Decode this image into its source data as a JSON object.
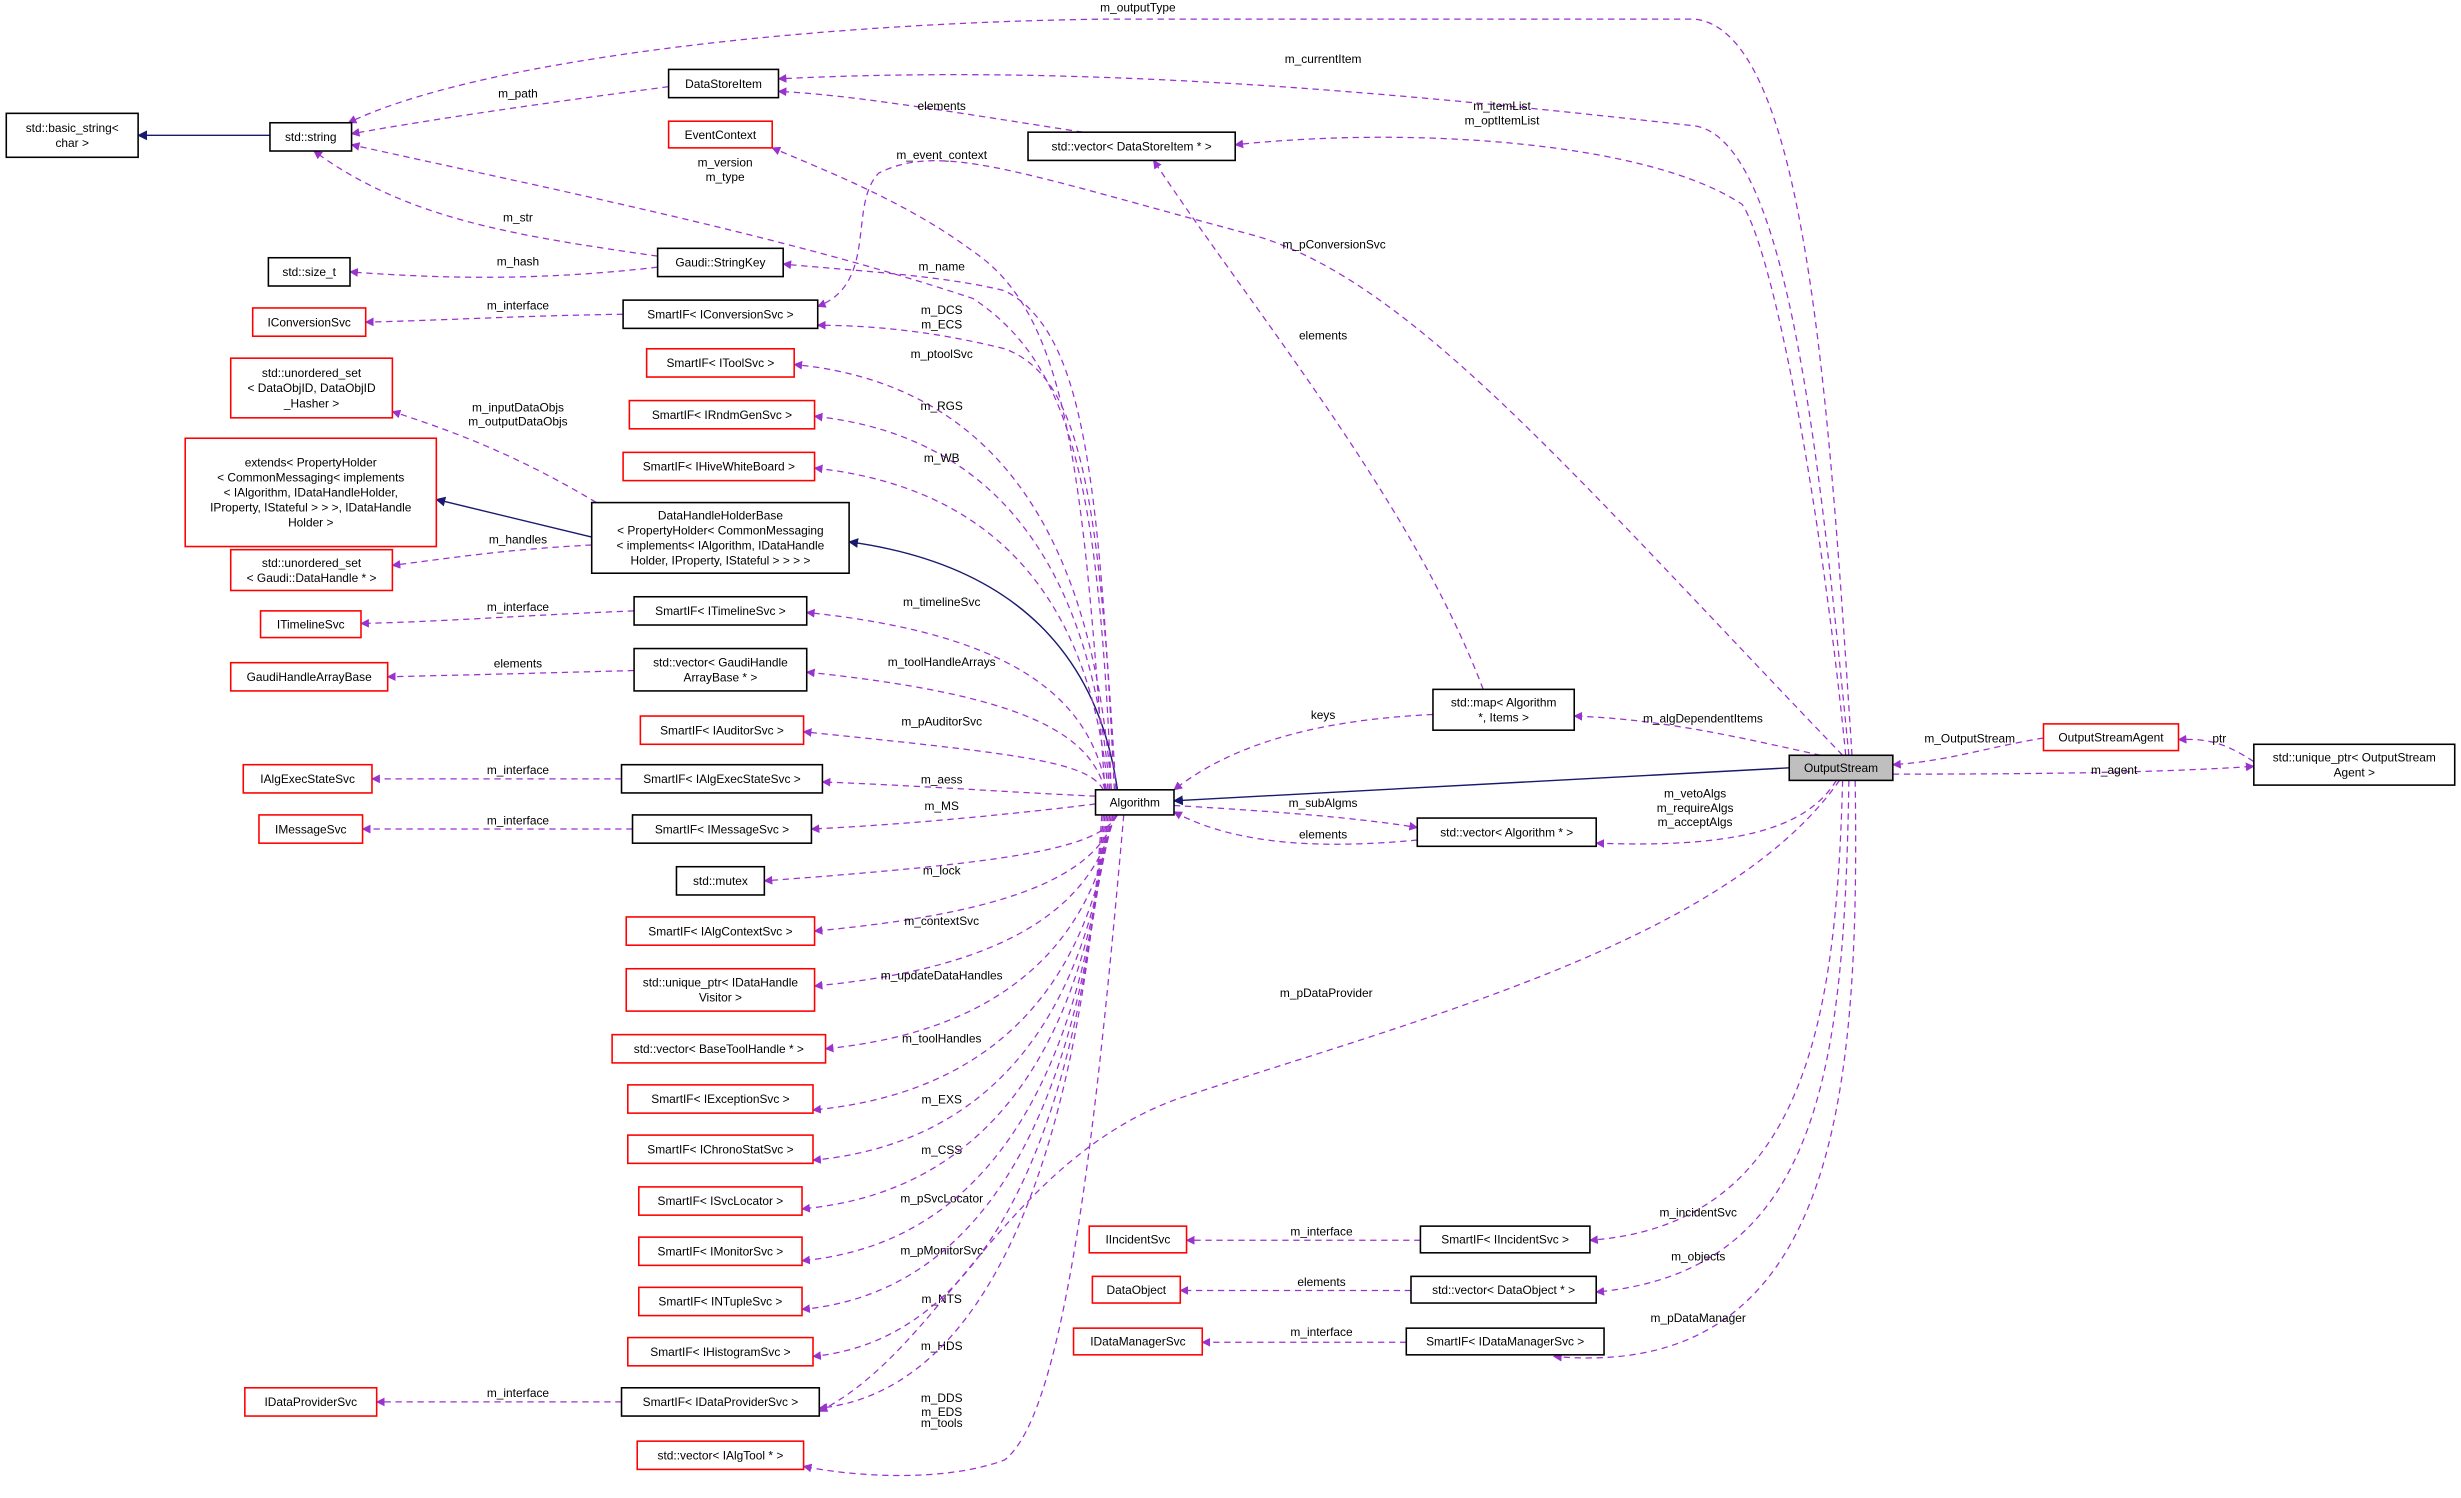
{
  "colors": {
    "member_edge": "#9a32cd",
    "inherit_edge": "#191970",
    "undocumented_border": "#ff0000",
    "documented_border": "#000000",
    "focus_fill": "#bfbfbf"
  },
  "nodes": {
    "basic_string": {
      "lines": [
        "std::basic_string<",
        "char >"
      ]
    },
    "string": {
      "lines": [
        "std::string"
      ]
    },
    "datastoreitem": {
      "lines": [
        "DataStoreItem"
      ]
    },
    "eventcontext": {
      "lines": [
        "EventContext"
      ]
    },
    "vec_dsi": {
      "lines": [
        "std::vector< DataStoreItem * >"
      ]
    },
    "stringkey": {
      "lines": [
        "Gaudi::StringKey"
      ]
    },
    "size_t": {
      "lines": [
        "std::size_t"
      ]
    },
    "sif_conv": {
      "lines": [
        "SmartIF< IConversionSvc >"
      ]
    },
    "iconv": {
      "lines": [
        "IConversionSvc"
      ]
    },
    "sif_tool": {
      "lines": [
        "SmartIF< IToolSvc >"
      ]
    },
    "uset_dataobj": {
      "lines": [
        "std::unordered_set",
        "< DataObjID, DataObjID",
        "_Hasher >"
      ]
    },
    "sif_rndm": {
      "lines": [
        "SmartIF< IRndmGenSvc >"
      ]
    },
    "extends": {
      "lines": [
        "extends< PropertyHolder",
        "< CommonMessaging< implements",
        "< IAlgorithm, IDataHandleHolder,",
        " IProperty, IStateful > > >, IDataHandle",
        "Holder >"
      ]
    },
    "sif_hive": {
      "lines": [
        "SmartIF< IHiveWhiteBoard >"
      ]
    },
    "dhhb": {
      "lines": [
        "DataHandleHolderBase",
        "< PropertyHolder< CommonMessaging",
        "< implements< IAlgorithm, IDataHandle",
        "Holder, IProperty, IStateful > > > >"
      ]
    },
    "uset_handle": {
      "lines": [
        "std::unordered_set",
        "< Gaudi::DataHandle * >"
      ]
    },
    "sif_timeline": {
      "lines": [
        "SmartIF< ITimelineSvc >"
      ]
    },
    "itimeline": {
      "lines": [
        "ITimelineSvc"
      ]
    },
    "vec_gha": {
      "lines": [
        "std::vector< GaudiHandle",
        "ArrayBase * >"
      ]
    },
    "gha": {
      "lines": [
        "GaudiHandleArrayBase"
      ]
    },
    "sif_auditor": {
      "lines": [
        "SmartIF< IAuditorSvc >"
      ]
    },
    "iaes": {
      "lines": [
        "IAlgExecStateSvc"
      ]
    },
    "sif_aes": {
      "lines": [
        "SmartIF< IAlgExecStateSvc >"
      ]
    },
    "imsg": {
      "lines": [
        "IMessageSvc"
      ]
    },
    "sif_msg": {
      "lines": [
        "SmartIF< IMessageSvc >"
      ]
    },
    "mutex": {
      "lines": [
        "std::mutex"
      ]
    },
    "sif_ctx": {
      "lines": [
        "SmartIF< IAlgContextSvc >"
      ]
    },
    "uptr_visitor": {
      "lines": [
        "std::unique_ptr< IDataHandle",
        "Visitor >"
      ]
    },
    "vec_bth": {
      "lines": [
        "std::vector< BaseToolHandle * >"
      ]
    },
    "sif_exc": {
      "lines": [
        "SmartIF< IExceptionSvc >"
      ]
    },
    "sif_chrono": {
      "lines": [
        "SmartIF< IChronoStatSvc >"
      ]
    },
    "sif_svcloc": {
      "lines": [
        "SmartIF< ISvcLocator >"
      ]
    },
    "sif_mon": {
      "lines": [
        "SmartIF< IMonitorSvc >"
      ]
    },
    "sif_ntuple": {
      "lines": [
        "SmartIF< INTupleSvc >"
      ]
    },
    "sif_hist": {
      "lines": [
        "SmartIF< IHistogramSvc >"
      ]
    },
    "idp": {
      "lines": [
        "IDataProviderSvc"
      ]
    },
    "sif_dp": {
      "lines": [
        "SmartIF< IDataProviderSvc >"
      ]
    },
    "vec_tool": {
      "lines": [
        "std::vector< IAlgTool * >"
      ]
    },
    "algorithm": {
      "lines": [
        "Algorithm"
      ]
    },
    "map_alg": {
      "lines": [
        "std::map< Algorithm",
        "*, Items >"
      ]
    },
    "vec_alg": {
      "lines": [
        "std::vector< Algorithm * >"
      ]
    },
    "outputstream": {
      "lines": [
        "OutputStream"
      ]
    },
    "osagent": {
      "lines": [
        "OutputStreamAgent"
      ]
    },
    "uptr_agent": {
      "lines": [
        "std::unique_ptr< OutputStream",
        "Agent >"
      ]
    },
    "iincident": {
      "lines": [
        "IIncidentSvc"
      ]
    },
    "sif_incident": {
      "lines": [
        "SmartIF< IIncidentSvc >"
      ]
    },
    "dataobject": {
      "lines": [
        "DataObject"
      ]
    },
    "vec_dobj": {
      "lines": [
        "std::vector< DataObject * >"
      ]
    },
    "idm": {
      "lines": [
        "IDataManagerSvc"
      ]
    },
    "sif_dm": {
      "lines": [
        "SmartIF< IDataManagerSvc >"
      ]
    }
  },
  "edges": {
    "outputType": [
      "m_outputType"
    ],
    "currentItem": [
      "m_currentItem"
    ],
    "itemList": [
      "m_itemList",
      "m_optItemList"
    ],
    "vecdsi_elements": [
      "elements"
    ],
    "path": [
      "m_path"
    ],
    "version": [
      "m_version",
      "m_type"
    ],
    "str": [
      "m_str"
    ],
    "hash": [
      "m_hash"
    ],
    "event_context": [
      "m_event_context"
    ],
    "pConversionSvc": [
      "m_pConversionSvc"
    ],
    "name": [
      "m_name"
    ],
    "dcs": [
      "m_DCS",
      "m_ECS"
    ],
    "conv_iface": [
      "m_interface"
    ],
    "ptoolSvc": [
      "m_ptoolSvc"
    ],
    "dataobjs": [
      "m_inputDataObjs",
      "m_outputDataObjs"
    ],
    "rgs": [
      "m_RGS"
    ],
    "wb": [
      "m_WB"
    ],
    "handles": [
      "m_handles"
    ],
    "timelineSvc": [
      "m_timelineSvc"
    ],
    "timeline_iface": [
      "m_interface"
    ],
    "gha_elements": [
      "elements"
    ],
    "toolHandleArrays": [
      "m_toolHandleArrays"
    ],
    "pAuditorSvc": [
      "m_pAuditorSvc"
    ],
    "aes_iface": [
      "m_interface"
    ],
    "aess": [
      "m_aess"
    ],
    "msg_iface": [
      "m_interface"
    ],
    "ms": [
      "m_MS"
    ],
    "lock": [
      "m_lock"
    ],
    "contextSvc": [
      "m_contextSvc"
    ],
    "updateDataHandles": [
      "m_updateDataHandles"
    ],
    "toolHandles": [
      "m_toolHandles"
    ],
    "exs": [
      "m_EXS"
    ],
    "css": [
      "m_CSS"
    ],
    "pSvcLocator": [
      "m_pSvcLocator"
    ],
    "pMonitorSvc": [
      "m_pMonitorSvc"
    ],
    "nts": [
      "m_NTS"
    ],
    "hds": [
      "m_HDS"
    ],
    "dds": [
      "m_DDS",
      "m_EDS"
    ],
    "dp_iface": [
      "m_interface"
    ],
    "tools": [
      "m_tools"
    ],
    "pDataProvider": [
      "m_pDataProvider"
    ],
    "keys": [
      "keys"
    ],
    "map_elements": [
      "elements"
    ],
    "algDependentItems": [
      "m_algDependentItems"
    ],
    "subAlgms": [
      "m_subAlgms"
    ],
    "vecalg_elements": [
      "elements"
    ],
    "vetoAlgs": [
      "m_vetoAlgs",
      "m_requireAlgs",
      "m_acceptAlgs"
    ],
    "m_OutputStream": [
      "m_OutputStream"
    ],
    "ptr": [
      "ptr"
    ],
    "agent": [
      "m_agent"
    ],
    "incidentSvc": [
      "m_incidentSvc"
    ],
    "incident_iface": [
      "m_interface"
    ],
    "objects": [
      "m_objects"
    ],
    "dobj_elements": [
      "elements"
    ],
    "pDataManager": [
      "m_pDataManager"
    ],
    "dm_iface": [
      "m_interface"
    ]
  }
}
